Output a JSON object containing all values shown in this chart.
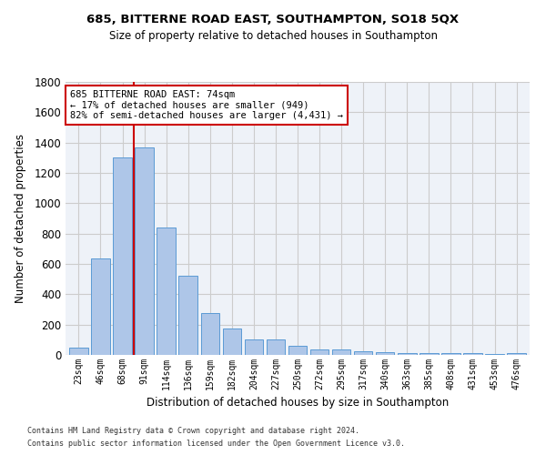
{
  "title1": "685, BITTERNE ROAD EAST, SOUTHAMPTON, SO18 5QX",
  "title2": "Size of property relative to detached houses in Southampton",
  "xlabel": "Distribution of detached houses by size in Southampton",
  "ylabel": "Number of detached properties",
  "categories": [
    "23sqm",
    "46sqm",
    "68sqm",
    "91sqm",
    "114sqm",
    "136sqm",
    "159sqm",
    "182sqm",
    "204sqm",
    "227sqm",
    "250sqm",
    "272sqm",
    "295sqm",
    "317sqm",
    "340sqm",
    "363sqm",
    "385sqm",
    "408sqm",
    "431sqm",
    "453sqm",
    "476sqm"
  ],
  "values": [
    50,
    635,
    1305,
    1370,
    840,
    525,
    275,
    175,
    105,
    105,
    60,
    35,
    35,
    27,
    20,
    10,
    10,
    10,
    10,
    5,
    15
  ],
  "bar_color": "#aec6e8",
  "bar_edge_color": "#5b9bd5",
  "vline_color": "#cc0000",
  "annotation_text": "685 BITTERNE ROAD EAST: 74sqm\n← 17% of detached houses are smaller (949)\n82% of semi-detached houses are larger (4,431) →",
  "annotation_box_color": "#ffffff",
  "annotation_box_edge": "#cc0000",
  "ylim": [
    0,
    1800
  ],
  "yticks": [
    0,
    200,
    400,
    600,
    800,
    1000,
    1200,
    1400,
    1600,
    1800
  ],
  "grid_color": "#cccccc",
  "bg_color": "#eef2f8",
  "footer1": "Contains HM Land Registry data © Crown copyright and database right 2024.",
  "footer2": "Contains public sector information licensed under the Open Government Licence v3.0."
}
